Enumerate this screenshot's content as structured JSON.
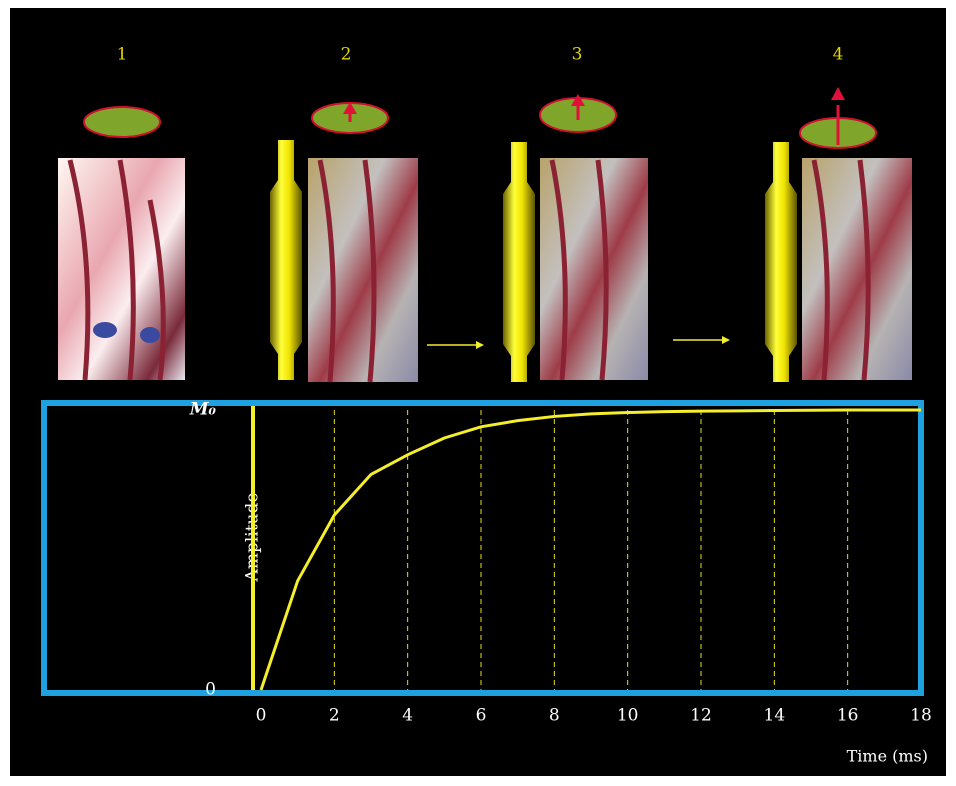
{
  "panels": [
    "1",
    "2",
    "3",
    "4"
  ],
  "chart_data": {
    "type": "line",
    "x": [
      0,
      1,
      2,
      3,
      4,
      5,
      6,
      7,
      8,
      9,
      10,
      11,
      12,
      13,
      14,
      15,
      16,
      17,
      18
    ],
    "values": [
      0,
      0.39,
      0.625,
      0.77,
      0.84,
      0.9,
      0.94,
      0.962,
      0.977,
      0.986,
      0.991,
      0.994,
      0.996,
      0.997,
      0.998,
      0.999,
      1,
      1,
      1
    ],
    "color": "#f5ee2a",
    "xlim": [
      0,
      18
    ],
    "xticks": [
      0,
      2,
      4,
      6,
      8,
      10,
      12,
      14,
      16,
      18
    ],
    "ylim": [
      0,
      1
    ],
    "yticks": [
      0,
      {
        "value": 1,
        "label": "M₀"
      }
    ],
    "xlabel": "Time (ms)",
    "ylabel": "Amplitude",
    "grid": true
  }
}
